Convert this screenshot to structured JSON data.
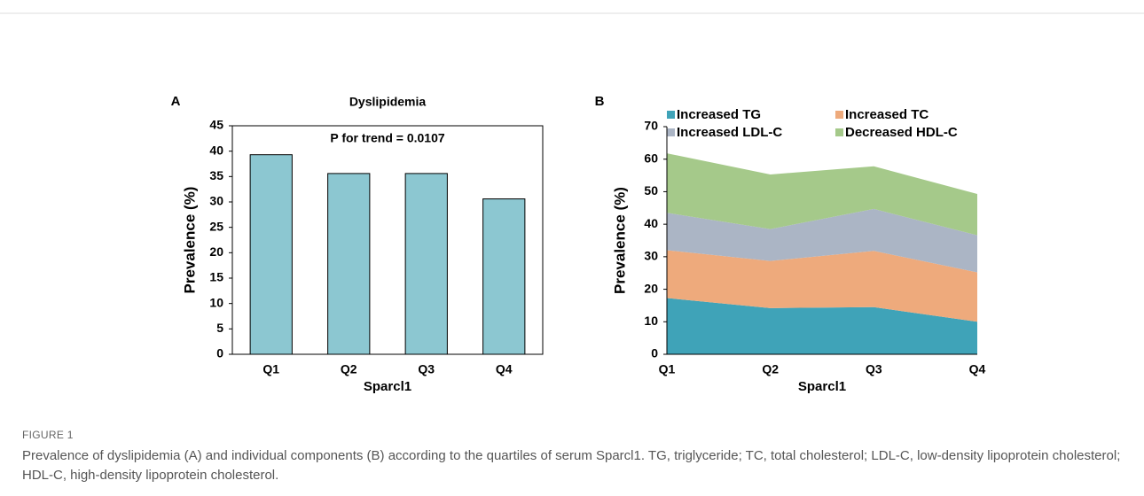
{
  "chart_data": [
    {
      "type": "bar",
      "panel": "A",
      "title": "Dyslipidemia",
      "annotation": "P for trend = 0.0107",
      "categories": [
        "Q1",
        "Q2",
        "Q3",
        "Q4"
      ],
      "values": [
        39.3,
        35.6,
        35.6,
        30.6
      ],
      "color": "#8cc7d1",
      "xlabel": "Sparcl1",
      "ylabel": "Prevalence (%)",
      "ylim": [
        0,
        45
      ],
      "yticks": [
        0,
        5,
        10,
        15,
        20,
        25,
        30,
        35,
        40,
        45
      ]
    },
    {
      "type": "stacked_area",
      "panel": "B",
      "categories": [
        "Q1",
        "Q2",
        "Q3",
        "Q4"
      ],
      "series": [
        {
          "name": "Increased TG",
          "color": "#3fa3b8",
          "values": [
            17.3,
            14.2,
            14.5,
            10.0
          ]
        },
        {
          "name": "Increased TC",
          "color": "#eeaa7c",
          "values": [
            14.7,
            14.5,
            17.3,
            15.2
          ]
        },
        {
          "name": "Increased LDL-C",
          "color": "#abb5c5",
          "values": [
            11.5,
            9.8,
            12.9,
            11.4
          ]
        },
        {
          "name": "Decreased HDL-C",
          "color": "#a5c98a",
          "values": [
            18.3,
            16.8,
            13.1,
            12.7
          ]
        }
      ],
      "xlabel": "Sparcl1",
      "ylabel": "Prevalence (%)",
      "ylim": [
        0,
        70
      ],
      "yticks": [
        0,
        10,
        20,
        30,
        40,
        50,
        60,
        70
      ]
    }
  ],
  "figure_label": "FIGURE 1",
  "caption": "Prevalence of dyslipidemia (A) and individual components (B) according to the quartiles of serum Sparcl1. TG, triglyceride; TC, total cholesterol; LDL-C, low-density lipoprotein cholesterol; HDL-C, high-density lipoprotein cholesterol."
}
